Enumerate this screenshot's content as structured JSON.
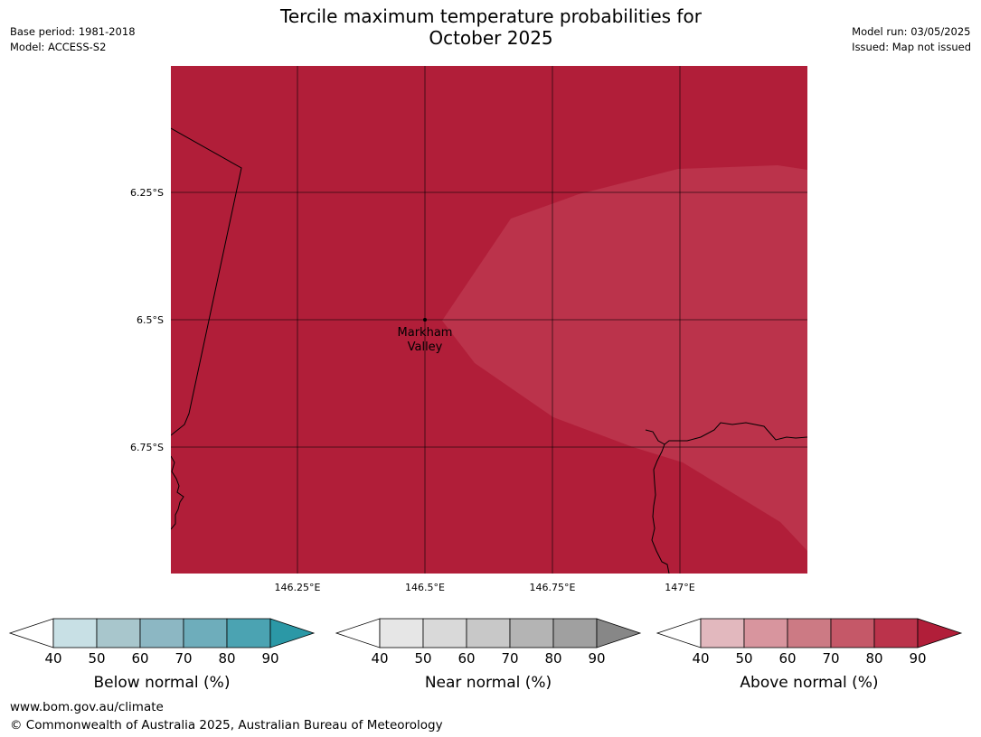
{
  "title_line1": "Tercile maximum temperature probabilities for",
  "title_line2": "October 2025",
  "meta": {
    "base_period": "Base period: 1981-2018",
    "model": "Model: ACCESS-S2",
    "model_run": "Model run: 03/05/2025",
    "issued": "Issued: Map not issued"
  },
  "map": {
    "lon_labels": [
      "146.25°E",
      "146.5°E",
      "146.75°E",
      "147°E"
    ],
    "lat_labels": [
      "6.25°S",
      "6.5°S",
      "6.75°S"
    ],
    "place_line1": "Markham",
    "place_line2": "Valley",
    "colors": {
      "dominant": "#b11e39",
      "secondary": "#bb334b"
    }
  },
  "legends": [
    {
      "label": "Below normal (%)",
      "ticks": [
        "40",
        "50",
        "60",
        "70",
        "80",
        "90"
      ],
      "colors": [
        "#ffffff",
        "#c8e0e5",
        "#a8c6cc",
        "#8cb7c3",
        "#6eadbb",
        "#4ba3b2",
        "#2b98a6"
      ]
    },
    {
      "label": "Near normal (%)",
      "ticks": [
        "40",
        "50",
        "60",
        "70",
        "80",
        "90"
      ],
      "colors": [
        "#ffffff",
        "#e6e6e6",
        "#d9d9d9",
        "#c8c8c8",
        "#b4b4b4",
        "#a0a0a0",
        "#878787"
      ]
    },
    {
      "label": "Above normal (%)",
      "ticks": [
        "40",
        "50",
        "60",
        "70",
        "80",
        "90"
      ],
      "colors": [
        "#ffffff",
        "#e2b8be",
        "#d8959e",
        "#cc7a84",
        "#c55868",
        "#bb334b",
        "#b11e39"
      ]
    }
  ],
  "footer": {
    "url": "www.bom.gov.au/climate",
    "copyright": "© Commonwealth of Australia 2025, Australian Bureau of Meteorology"
  }
}
